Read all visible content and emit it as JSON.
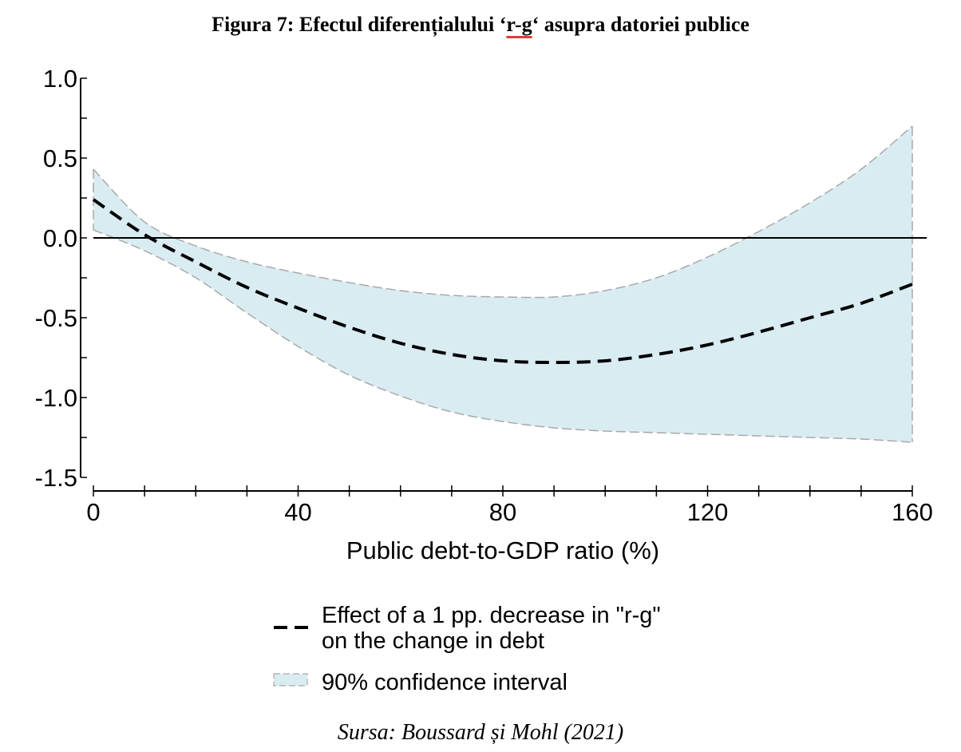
{
  "title": {
    "prefix": "Figura 7: Efectul diferențialului ‘",
    "highlight": "r-g",
    "suffix": "‘ asupra datoriei publice"
  },
  "source": "Sursa: Boussard și Mohl (2021)",
  "chart_data": {
    "type": "line",
    "xlabel": "Public debt-to-GDP ratio (%)",
    "ylabel": "",
    "xlim": [
      0,
      160
    ],
    "ylim": [
      -1.5,
      1.0
    ],
    "x_ticks": [
      0,
      40,
      80,
      120,
      160
    ],
    "x_tick_labels": [
      "0",
      "40",
      "80",
      "120",
      "160"
    ],
    "y_ticks": [
      1.0,
      0.5,
      0.0,
      -0.5,
      -1.0,
      -1.5
    ],
    "y_tick_labels": [
      "1.0",
      "0.5",
      "0.0",
      "-0.5",
      "-1.0",
      "-1.5"
    ],
    "zero_line": true,
    "grid": false,
    "legend_position": "bottom-center",
    "x": [
      0,
      10,
      20,
      30,
      40,
      50,
      60,
      70,
      80,
      90,
      100,
      110,
      120,
      130,
      140,
      150,
      160
    ],
    "series": [
      {
        "name": "Effect of a 1 pp. decrease in \"r-g\" on the change in debt",
        "legend_lines": [
          "Effect of a 1 pp. decrease in \"r-g\"",
          "on the change in debt"
        ],
        "style": "dashed",
        "color": "#000000",
        "values": [
          0.24,
          0.02,
          -0.15,
          -0.31,
          -0.44,
          -0.56,
          -0.66,
          -0.73,
          -0.77,
          -0.78,
          -0.77,
          -0.73,
          -0.67,
          -0.59,
          -0.5,
          -0.41,
          -0.29
        ]
      }
    ],
    "band": {
      "name": "90% confidence interval",
      "fill": "#d9ecf2",
      "edge": "#a9a9a9",
      "upper": [
        0.43,
        0.1,
        -0.05,
        -0.15,
        -0.22,
        -0.28,
        -0.33,
        -0.36,
        -0.37,
        -0.37,
        -0.33,
        -0.25,
        -0.12,
        0.04,
        0.22,
        0.43,
        0.7
      ],
      "lower": [
        0.05,
        -0.08,
        -0.25,
        -0.47,
        -0.68,
        -0.86,
        -0.99,
        -1.09,
        -1.15,
        -1.19,
        -1.21,
        -1.22,
        -1.23,
        -1.24,
        -1.25,
        -1.26,
        -1.28
      ]
    }
  }
}
